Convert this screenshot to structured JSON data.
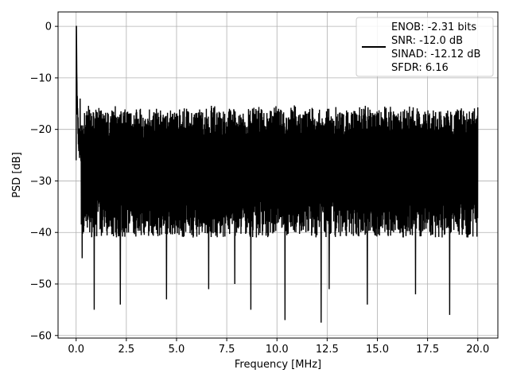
{
  "chart_data": {
    "type": "line",
    "title": "",
    "xlabel": "Frequency [MHz]",
    "ylabel": "PSD [dB]",
    "xlim": [
      -0.9,
      21.0
    ],
    "ylim": [
      -60.5,
      2.8
    ],
    "xticks": [
      0.0,
      2.5,
      5.0,
      7.5,
      10.0,
      12.5,
      15.0,
      17.5,
      20.0
    ],
    "xtick_labels": [
      "0.0",
      "2.5",
      "5.0",
      "7.5",
      "10.0",
      "12.5",
      "15.0",
      "17.5",
      "20.0"
    ],
    "yticks": [
      0,
      -10,
      -20,
      -30,
      -40,
      -50,
      -60
    ],
    "ytick_labels": [
      "0",
      "−10",
      "−20",
      "−30",
      "−40",
      "−50",
      "−60"
    ],
    "grid": true,
    "legend_position": "top-right",
    "series": [
      {
        "color": "#000000",
        "x": [
          0.0,
          0.01,
          0.02,
          0.04,
          0.06,
          0.08,
          0.1,
          0.12,
          0.15,
          0.18,
          0.21,
          0.25,
          0.3,
          0.35,
          0.4,
          0.5,
          0.6,
          0.75,
          0.9,
          1.0,
          1.2,
          1.5,
          1.8,
          2.1,
          2.4,
          2.7,
          3.0,
          3.3,
          3.6,
          4.0,
          4.3,
          4.5,
          4.8,
          5.2,
          5.5,
          5.8,
          6.2,
          6.5,
          6.9,
          7.2,
          7.5,
          7.9,
          8.3,
          8.6,
          9.0,
          9.4,
          9.8,
          10.1,
          10.4,
          10.5,
          10.8,
          11.2,
          11.6,
          12.0,
          12.2,
          12.5,
          12.8,
          13.2,
          13.6,
          14.0,
          14.4,
          14.8,
          15.2,
          15.6,
          16.0,
          16.4,
          16.8,
          17.2,
          17.6,
          18.0,
          18.3,
          18.6,
          19.0,
          19.4,
          19.8,
          20.0
        ],
        "y": [
          -26,
          0,
          -7,
          -12,
          -17,
          -19,
          -20,
          -21,
          -23,
          -22,
          -24,
          -26,
          -25,
          -27,
          -26,
          -28,
          -27,
          -28,
          -29,
          -28,
          -27,
          -29,
          -28,
          -27,
          -28,
          -29,
          -28,
          -27,
          -28,
          -29,
          -28,
          -27,
          -29,
          -28,
          -27,
          -29,
          -28,
          -28,
          -27,
          -29,
          -28,
          -27,
          -29,
          -28,
          -27,
          -29,
          -28,
          -27,
          -29,
          -28,
          -27,
          -29,
          -28,
          -27,
          -29,
          -28,
          -28,
          -27,
          -29,
          -28,
          -27,
          -29,
          -28,
          -27,
          -29,
          -28,
          -27,
          -29,
          -28,
          -27,
          -29,
          -28,
          -27,
          -29,
          -28,
          -26
        ],
        "band_upper": -20,
        "band_lower": -37,
        "peaks_high": [
          [
            0.2,
            -14
          ],
          [
            1.0,
            -17
          ],
          [
            3.2,
            -16
          ],
          [
            4.0,
            -16
          ],
          [
            5.5,
            -16
          ],
          [
            7.0,
            -17
          ],
          [
            10.3,
            -17
          ],
          [
            12.5,
            -18
          ],
          [
            15.3,
            -18
          ],
          [
            17.0,
            -18
          ],
          [
            19.2,
            -19
          ]
        ],
        "dips_low": [
          [
            0.3,
            -45
          ],
          [
            0.9,
            -55
          ],
          [
            2.2,
            -54
          ],
          [
            4.5,
            -53
          ],
          [
            6.6,
            -51
          ],
          [
            7.9,
            -50
          ],
          [
            8.7,
            -55
          ],
          [
            10.4,
            -57
          ],
          [
            12.2,
            -57.5
          ],
          [
            12.6,
            -51
          ],
          [
            14.5,
            -54
          ],
          [
            16.9,
            -52
          ],
          [
            18.6,
            -56
          ]
        ]
      }
    ],
    "legend": {
      "lines": [
        "ENOB: -2.31 bits",
        "SNR: -12.0 dB",
        "SINAD: -12.12 dB",
        "SFDR: 6.16"
      ]
    }
  }
}
